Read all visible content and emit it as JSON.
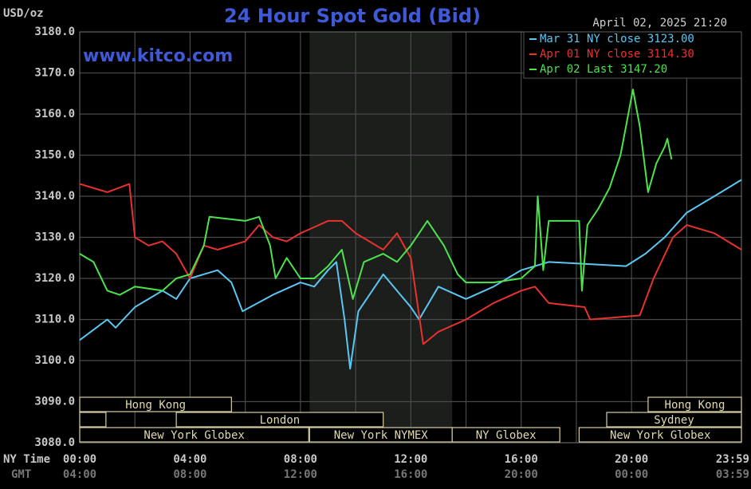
{
  "chart_data": {
    "type": "line",
    "title": "24 Hour Spot Gold (Bid)",
    "y_label": "USD/oz",
    "timestamp": "April 02, 2025 21:20",
    "watermark": "www.kitco.com",
    "x_label": "NY Time",
    "x2_label": "GMT",
    "xlim": [
      0,
      23.983
    ],
    "ylim": [
      3080,
      3180
    ],
    "xticks": [
      {
        "value": 0,
        "label": "00:00"
      },
      {
        "value": 4,
        "label": "04:00"
      },
      {
        "value": 8,
        "label": "08:00"
      },
      {
        "value": 12,
        "label": "12:00"
      },
      {
        "value": 16,
        "label": "16:00"
      },
      {
        "value": 20,
        "label": "20:00"
      },
      {
        "value": 23.983,
        "label": "23:59"
      }
    ],
    "x2_tick_labels": [
      "04:00",
      "08:00",
      "12:00",
      "16:00",
      "20:00",
      "00:00",
      "03:59"
    ],
    "xgrid": [
      2,
      6,
      10,
      14,
      18,
      22
    ],
    "yticks": [
      {
        "value": 3080,
        "label": "3080.0"
      },
      {
        "value": 3090,
        "label": "3090.0"
      },
      {
        "value": 3100,
        "label": "3100.0"
      },
      {
        "value": 3110,
        "label": "3110.0"
      },
      {
        "value": 3120,
        "label": "3120.0"
      },
      {
        "value": 3130,
        "label": "3130.0"
      },
      {
        "value": 3140,
        "label": "3140.0"
      },
      {
        "value": 3150,
        "label": "3150.0"
      },
      {
        "value": 3160,
        "label": "3160.0"
      },
      {
        "value": 3170,
        "label": "3170.0"
      },
      {
        "value": 3180,
        "label": "3180.0"
      }
    ],
    "grid": true,
    "legend": "top-right",
    "highlight": [
      8.33,
      13.5
    ],
    "series": [
      {
        "name": "Mar 31 NY close 3123.00",
        "color": "#5cc6f2",
        "x": [
          0,
          1,
          1.3,
          2,
          3,
          3.5,
          4,
          5,
          5.5,
          5.9,
          7,
          8,
          8.5,
          9,
          9.3,
          9.6,
          9.8,
          10.1,
          10.5,
          11,
          12,
          12.3,
          13,
          14,
          15,
          16,
          17,
          19.8,
          20.5,
          21.2,
          22,
          23,
          23.983
        ],
        "values": [
          3105,
          3110,
          3108,
          3113,
          3117,
          3115,
          3120,
          3122,
          3119,
          3112,
          3116,
          3119,
          3118,
          3122,
          3124,
          3110,
          3098,
          3112,
          3116,
          3121,
          3113,
          3110,
          3118,
          3115,
          3118,
          3122,
          3124,
          3123,
          3126,
          3130,
          3136,
          3140,
          3144
        ]
      },
      {
        "name": "Apr 01 NY close 3114.30",
        "color": "#e8322d",
        "x": [
          0,
          1,
          1.8,
          2,
          2.5,
          3,
          3.5,
          4,
          4.5,
          5,
          6,
          6.5,
          7,
          7.5,
          8,
          9,
          9.5,
          10,
          11,
          11.5,
          12,
          12.45,
          13,
          14,
          15,
          16,
          16.5,
          17,
          18.3,
          18.5,
          20.3,
          20.8,
          21.5,
          22,
          23,
          23.983
        ],
        "values": [
          3143,
          3141,
          3143,
          3130,
          3128,
          3129,
          3126,
          3120,
          3128,
          3127,
          3129,
          3133,
          3130,
          3129,
          3131,
          3134,
          3134,
          3131,
          3127,
          3131,
          3125,
          3104,
          3107,
          3110,
          3114,
          3117,
          3118,
          3114,
          3113,
          3110,
          3111,
          3120,
          3130,
          3133,
          3131,
          3127
        ]
      },
      {
        "name": "Apr 02 Last 3147.20",
        "color": "#4de34d",
        "x": [
          0,
          0.5,
          1,
          1.45,
          2,
          3,
          3.5,
          4,
          4.5,
          4.7,
          6,
          6.5,
          6.9,
          7.1,
          7.5,
          8,
          8.5,
          9,
          9.5,
          9.9,
          10.3,
          11,
          11.5,
          12,
          12.6,
          13.2,
          13.7,
          14,
          15,
          16,
          16.5,
          16.6,
          16.8,
          17,
          18.1,
          18.2,
          18.4,
          18.8,
          19.2,
          19.6,
          19.8,
          20.05,
          20.3,
          20.6,
          20.9,
          21.2,
          21.3,
          21.45
        ],
        "values": [
          3126,
          3124,
          3117,
          3116,
          3118,
          3117,
          3120,
          3121,
          3128,
          3135,
          3134,
          3135,
          3128,
          3120,
          3125,
          3120,
          3120,
          3123,
          3127,
          3115,
          3124,
          3126,
          3124,
          3128,
          3134,
          3128,
          3121,
          3119,
          3119,
          3120,
          3123,
          3140,
          3122,
          3134,
          3134,
          3117,
          3133,
          3137,
          3142,
          3150,
          3157,
          3166,
          3157,
          3141,
          3148,
          3152,
          3154,
          3149
        ]
      }
    ],
    "session_rows": [
      [
        {
          "label": "Hong Kong",
          "start": 0,
          "end": 5.5
        },
        {
          "label": "Hong Kong",
          "start": 20.6,
          "end": 23.983
        }
      ],
      [
        {
          "label": null,
          "start": 0,
          "end": 0.95
        },
        {
          "label": "London",
          "start": 3.5,
          "end": 11
        },
        {
          "label": "Sydney",
          "start": 19.1,
          "end": 23.983
        }
      ],
      [
        {
          "label": "New York Globex",
          "start": 0,
          "end": 8.3
        },
        {
          "label": "New York NYMEX",
          "start": 8.33,
          "end": 13.5
        },
        {
          "label": "NY Globex",
          "start": 13.5,
          "end": 17.4
        },
        {
          "label": "New York Globex",
          "start": 18.1,
          "end": 23.983
        }
      ]
    ]
  }
}
